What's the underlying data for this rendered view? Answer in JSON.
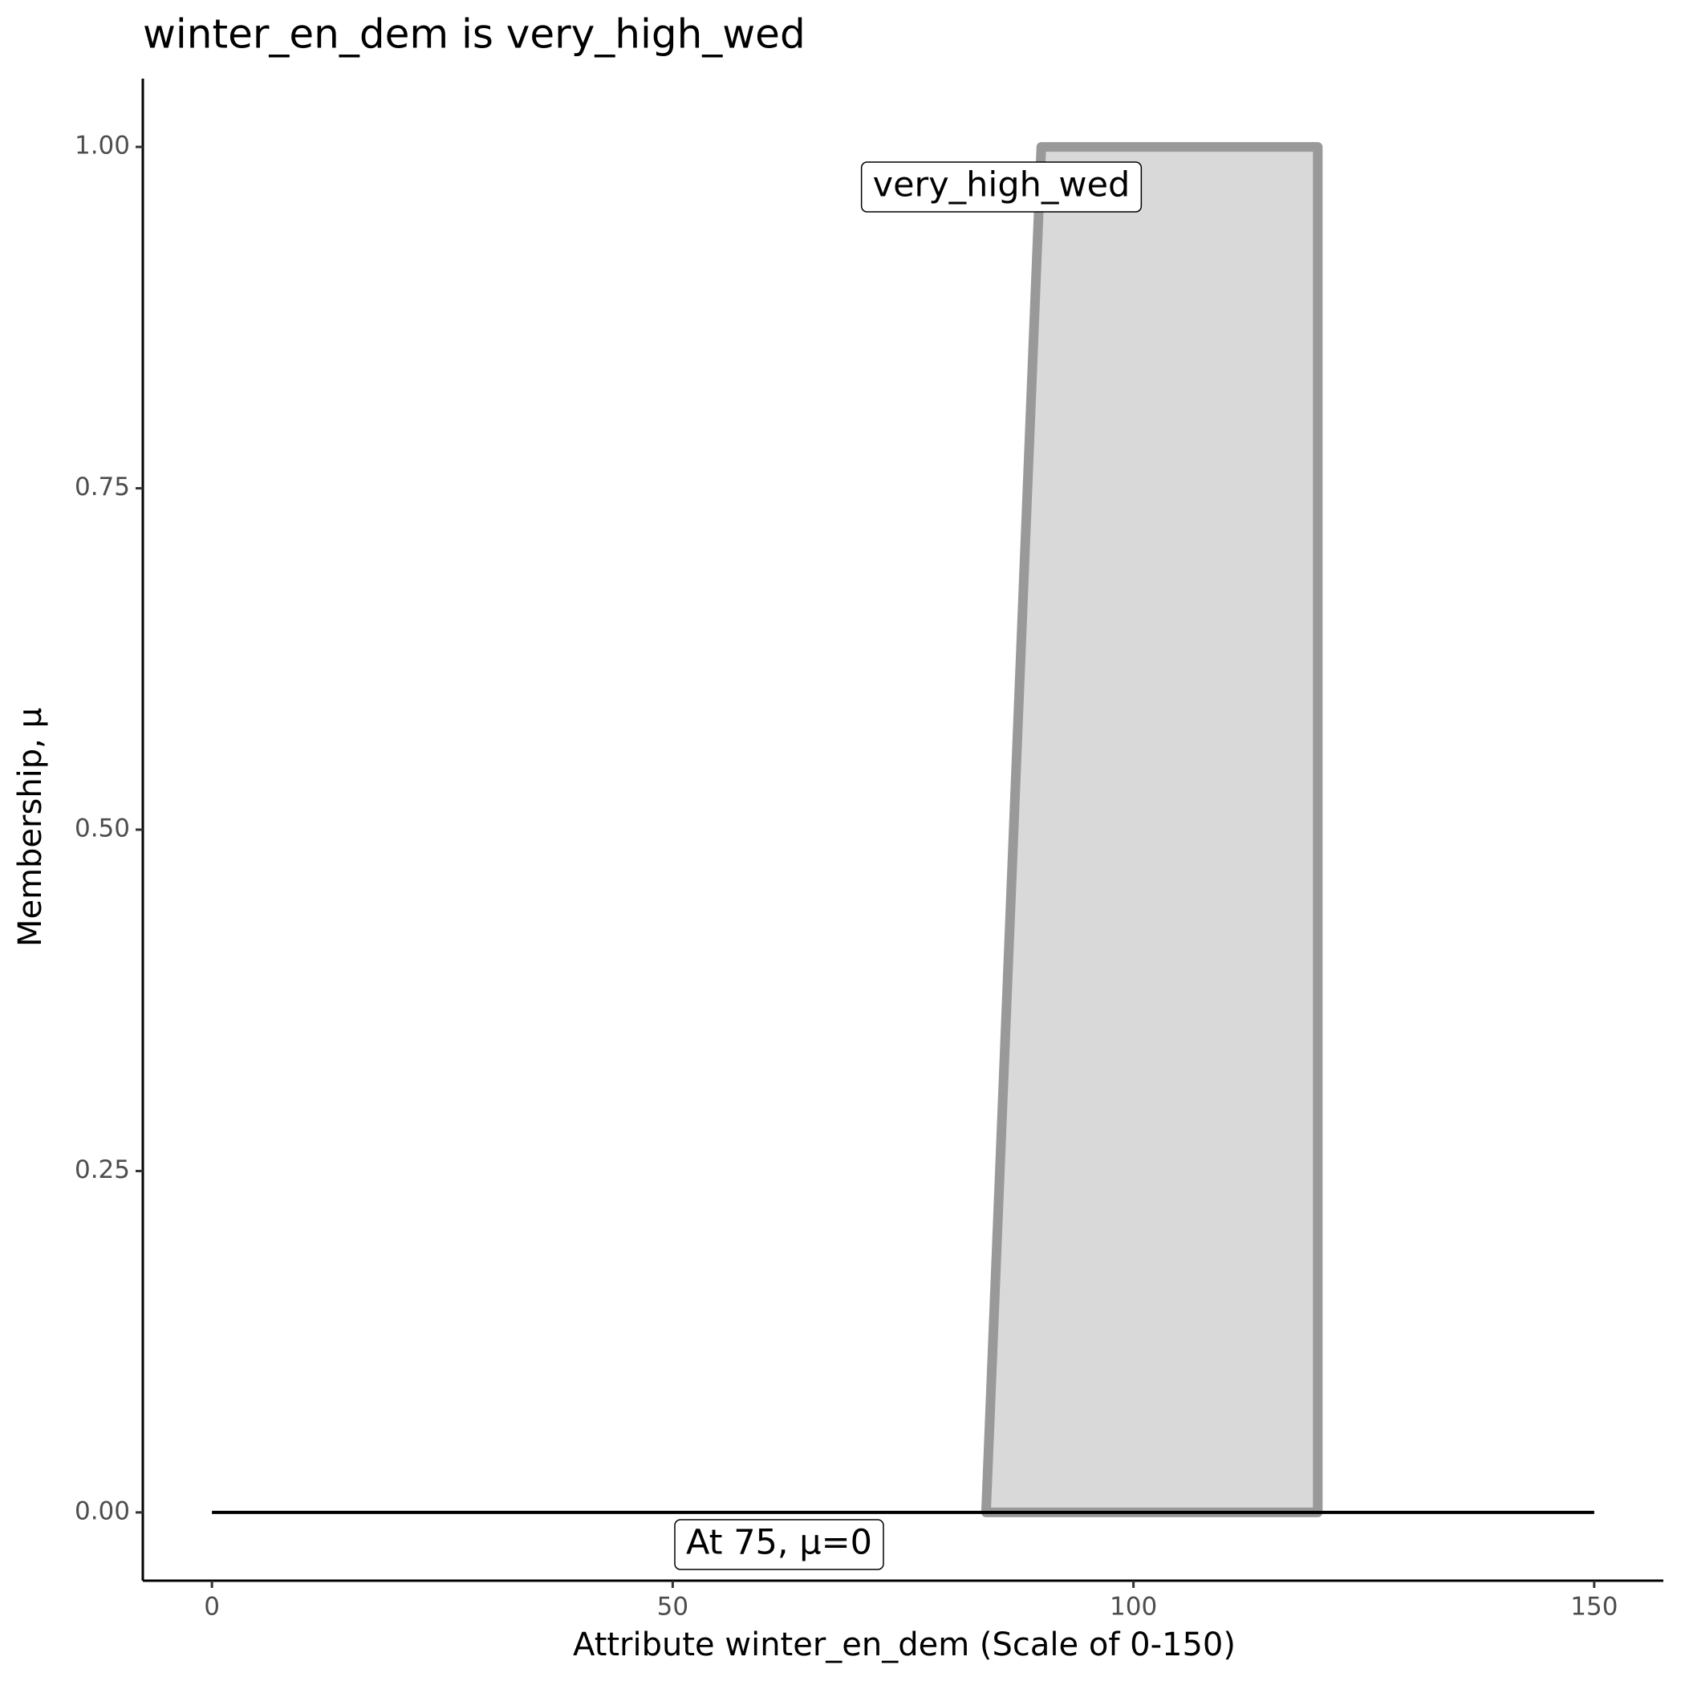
{
  "chart_data": {
    "type": "area",
    "title": "winter_en_dem is very_high_wed",
    "xlabel": "Attribute winter_en_dem (Scale of 0-150)",
    "ylabel": "Membership, μ",
    "series": [
      {
        "x": [
          84,
          90,
          120,
          120
        ],
        "values": [
          0,
          1,
          1,
          0
        ],
        "color": "#999999",
        "fill": "#d9d9d9"
      },
      {
        "x": [
          0,
          150
        ],
        "values": [
          0,
          0
        ],
        "color": "#000000"
      }
    ],
    "annotations": [
      "very_high_wed",
      "At 75, μ=0"
    ],
    "xlim": [
      -7.5,
      157.5
    ],
    "ylim": [
      -0.05,
      1.05
    ],
    "xticks": [
      0,
      50,
      100,
      150
    ],
    "yticks": [
      {
        "value": 0,
        "label": "0.00"
      },
      {
        "value": 0.25,
        "label": "0.25"
      },
      {
        "value": 0.5,
        "label": "0.50"
      },
      {
        "value": 0.75,
        "label": "0.75"
      },
      {
        "value": 1,
        "label": "1.00"
      }
    ],
    "grid": false
  }
}
